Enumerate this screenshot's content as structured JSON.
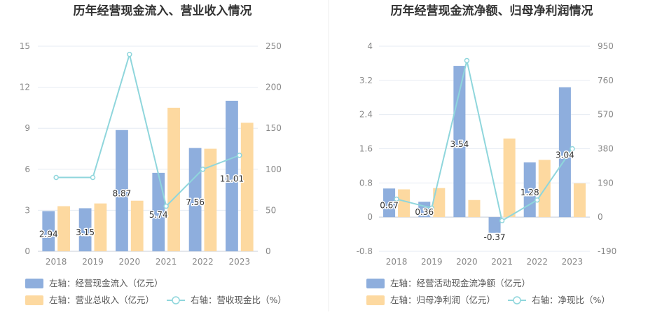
{
  "colors": {
    "bar_left": "#8eaedd",
    "bar_right": "#fdd9a0",
    "line": "#8fd6dc",
    "axis_text": "#888888",
    "grid": "#e6ebf3",
    "divider": "#eeeeee"
  },
  "chart_data": [
    {
      "type": "bar",
      "title": "历年经营现金流入、营业收入情况",
      "categories": [
        "2018",
        "2019",
        "2020",
        "2021",
        "2022",
        "2023"
      ],
      "y_left": {
        "min": 0,
        "max": 15,
        "ticks": [
          "0",
          "3",
          "6",
          "9",
          "12",
          "15"
        ]
      },
      "y_right": {
        "min": 0,
        "max": 250,
        "ticks": [
          "0",
          "50",
          "100",
          "150",
          "200",
          "250"
        ]
      },
      "series": [
        {
          "name": "左轴：经营现金流入（亿元）",
          "kind": "bar",
          "axis": "left",
          "values": [
            2.94,
            3.15,
            8.87,
            5.74,
            7.56,
            11.01
          ],
          "labels": [
            "2.94",
            "3.15",
            "8.87",
            "5.74",
            "7.56",
            "11.01"
          ]
        },
        {
          "name": "左轴：营业总收入（亿元）",
          "kind": "bar",
          "axis": "left",
          "values": [
            3.3,
            3.5,
            3.7,
            10.5,
            7.5,
            9.4
          ]
        },
        {
          "name": "右轴：营收现金比（%）",
          "kind": "line",
          "axis": "right",
          "values": [
            90,
            90,
            240,
            55,
            100,
            117
          ]
        }
      ],
      "legend_placement": "bottom-left",
      "grid": true
    },
    {
      "type": "bar",
      "title": "历年经营现金流净额、归母净利润情况",
      "categories": [
        "2018",
        "2019",
        "2020",
        "2021",
        "2022",
        "2023"
      ],
      "y_left": {
        "min": -0.8,
        "max": 4,
        "ticks": [
          "-0.8",
          "0",
          "0.8",
          "1.6",
          "2.4",
          "3.2",
          "4"
        ]
      },
      "y_right": {
        "min": -190,
        "max": 950,
        "ticks": [
          "-190",
          "0",
          "190",
          "380",
          "570",
          "760",
          "950"
        ]
      },
      "series": [
        {
          "name": "左轴：经营活动现金流净额（亿元）",
          "kind": "bar",
          "axis": "left",
          "values": [
            0.67,
            0.36,
            3.54,
            -0.37,
            1.28,
            3.04
          ],
          "labels": [
            "0.67",
            "0.36",
            "3.54",
            "-0.37",
            "1.28",
            "3.04"
          ]
        },
        {
          "name": "左轴：归母净利润（亿元）",
          "kind": "bar",
          "axis": "left",
          "values": [
            0.65,
            0.68,
            0.4,
            1.84,
            1.34,
            0.79
          ]
        },
        {
          "name": "右轴：净现比（%）",
          "kind": "line",
          "axis": "right",
          "values": [
            100,
            50,
            870,
            -20,
            95,
            380
          ]
        }
      ],
      "legend_placement": "bottom-left",
      "grid": true
    }
  ]
}
